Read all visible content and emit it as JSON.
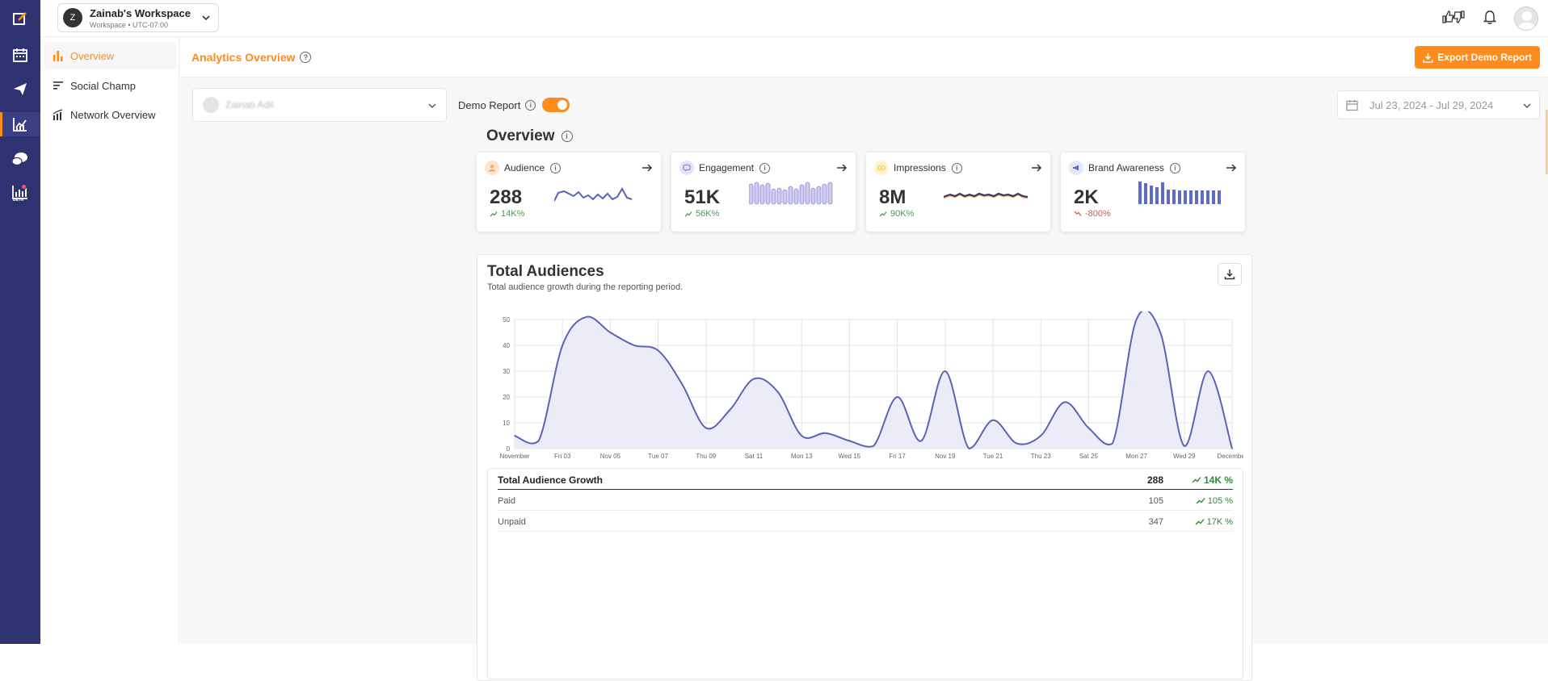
{
  "workspace": {
    "avatar_letter": "Z",
    "name": "Zainab's Workspace",
    "sub": "Workspace • UTC-07:00"
  },
  "sidebar": {
    "items": [
      {
        "label": "Overview"
      },
      {
        "label": "Social Champ"
      },
      {
        "label": "Network Overview"
      }
    ]
  },
  "rail": {
    "icons": [
      "compose-icon",
      "calendar-icon",
      "send-icon",
      "analytics-icon",
      "chat-icon",
      "beta-analytics-icon"
    ],
    "beta_label": "BETA"
  },
  "header": {
    "title": "Analytics Overview",
    "export_label": "Export Demo Report"
  },
  "filters": {
    "profile_name": "Zainab Adil",
    "demo_label": "Demo Report",
    "demo_enabled": true,
    "date_range": "Jul 23, 2024 - Jul 29, 2024"
  },
  "overview": {
    "title": "Overview",
    "kpis": [
      {
        "label": "Audience",
        "value": "288",
        "change": "14K%",
        "trend": "up",
        "color": "#f5a96b"
      },
      {
        "label": "Engagement",
        "value": "51K",
        "change": "56K%",
        "trend": "up",
        "color": "#8d87d6"
      },
      {
        "label": "Impressions",
        "value": "8M",
        "change": "90K%",
        "trend": "up",
        "color": "#f2cf4a"
      },
      {
        "label": "Brand Awareness",
        "value": "2K",
        "change": "-800%",
        "trend": "down",
        "color": "#5b6bc7"
      }
    ]
  },
  "total_audiences": {
    "title": "Total Audiences",
    "subtitle": "Total audience growth during the reporting period.",
    "table": {
      "head": {
        "label": "Total Audience Growth",
        "value": "288",
        "change": "14K %"
      },
      "rows": [
        {
          "label": "Paid",
          "value": "105",
          "change": "105 %"
        },
        {
          "label": "Unpaid",
          "value": "347",
          "change": "17K %"
        }
      ]
    }
  },
  "chart_data": {
    "type": "area",
    "title": "",
    "xlabel": "",
    "ylabel": "",
    "ylim": [
      0,
      50
    ],
    "yticks": [
      0,
      10,
      20,
      30,
      40,
      50
    ],
    "x_tick_labels": [
      "November",
      "Fri 03",
      "Nov 05",
      "Tue 07",
      "Thu 09",
      "Sat 11",
      "Mon 13",
      "Wed 15",
      "Fri 17",
      "Nov 19",
      "Tue 21",
      "Thu 23",
      "Sat 25",
      "Mon 27",
      "Wed 29",
      "December"
    ],
    "x": [
      0,
      0.5,
      1,
      1.5,
      2,
      2.5,
      3,
      3.5,
      4,
      4.5,
      5,
      5.5,
      6,
      6.5,
      7,
      7.5,
      8,
      8.5,
      9,
      9.5,
      10,
      10.5,
      11,
      11.5,
      12,
      12.5,
      13,
      13.5,
      14,
      14.5,
      15
    ],
    "series": [
      {
        "values": [
          5,
          3,
          40,
          51,
          45,
          40,
          38,
          25,
          8,
          15,
          27,
          22,
          5,
          6,
          3,
          1,
          20,
          3,
          30,
          0,
          11,
          2,
          5,
          18,
          8,
          2,
          50,
          45,
          1,
          30,
          0
        ],
        "color": "#5b63b8",
        "fill": "#ecebf8"
      }
    ],
    "grid": true
  }
}
